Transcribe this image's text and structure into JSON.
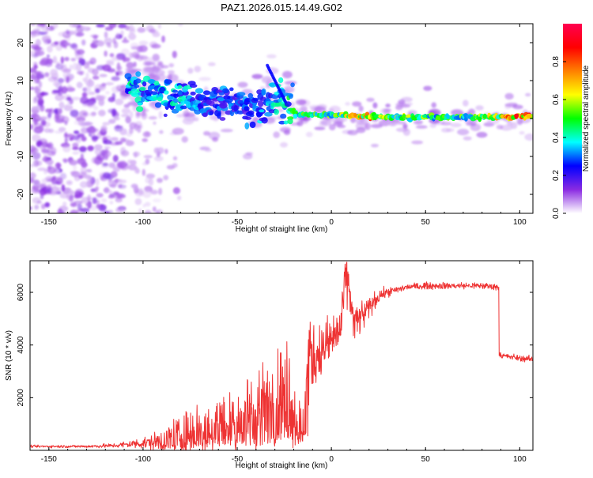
{
  "title": "PAZ1.2026.015.14.49.G02",
  "top_panel": {
    "xlabel": "Height of straight line (km)",
    "ylabel": "Frequency (Hz)",
    "colorbar_label": "Normalized spectral amplitude"
  },
  "bottom_panel": {
    "xlabel": "Height of straight line (km)",
    "ylabel": "SNR (10 * v/v)"
  },
  "chart_data": [
    {
      "type": "heatmap",
      "title": "PAZ1.2026.015.14.49.G02",
      "xlabel": "Height of straight line (km)",
      "ylabel": "Frequency (Hz)",
      "xlim": [
        -160,
        107
      ],
      "ylim": [
        -25,
        25
      ],
      "xticks": [
        -150,
        -100,
        -50,
        0,
        50,
        100
      ],
      "xtick_labels": [
        "-150",
        "-100",
        "-50",
        "0",
        "50",
        "100"
      ],
      "yticks": [
        -20,
        -10,
        0,
        10,
        20
      ],
      "ytick_labels": [
        "-20",
        "-10",
        "0",
        "10",
        "20"
      ],
      "colorbar": {
        "label": "Normalized spectral amplitude",
        "range": [
          0,
          1
        ],
        "ticks": [
          0.0,
          0.2,
          0.4,
          0.6,
          0.8
        ],
        "tick_labels": [
          "0.0",
          "0.2",
          "0.4",
          "0.6",
          "0.8"
        ],
        "colormap": [
          "#ffffff",
          "#8a2be2",
          "#0000ff",
          "#00ffff",
          "#00ff00",
          "#ffff00",
          "#ff8000",
          "#ff0000",
          "#ff0050"
        ]
      },
      "ridge": [
        {
          "x": -105,
          "freq": 7.5,
          "amp": 0.4
        },
        {
          "x": -95,
          "freq": 7.0,
          "amp": 0.35
        },
        {
          "x": -85,
          "freq": 6.0,
          "amp": 0.4
        },
        {
          "x": -75,
          "freq": 5.0,
          "amp": 0.35
        },
        {
          "x": -65,
          "freq": 4.0,
          "amp": 0.3
        },
        {
          "x": -55,
          "freq": 4.5,
          "amp": 0.3
        },
        {
          "x": -45,
          "freq": 3.0,
          "amp": 0.3
        },
        {
          "x": -35,
          "freq": 3.5,
          "amp": 0.35
        },
        {
          "x": -25,
          "freq": 5.0,
          "amp": 0.4
        },
        {
          "x": -18,
          "freq": 1.0,
          "amp": 0.5
        },
        {
          "x": 0,
          "freq": 1.0,
          "amp": 0.55
        },
        {
          "x": 20,
          "freq": 0.5,
          "amp": 0.75
        },
        {
          "x": 40,
          "freq": 0.3,
          "amp": 0.55
        },
        {
          "x": 60,
          "freq": 0.3,
          "amp": 0.5
        },
        {
          "x": 80,
          "freq": 0.4,
          "amp": 0.55
        },
        {
          "x": 100,
          "freq": 0.6,
          "amp": 0.85
        }
      ]
    },
    {
      "type": "line",
      "xlabel": "Height of straight line (km)",
      "ylabel": "SNR (10 * v/v)",
      "xlim": [
        -160,
        107
      ],
      "ylim": [
        0,
        7200
      ],
      "xticks": [
        -150,
        -100,
        -50,
        0,
        50,
        100
      ],
      "xtick_labels": [
        "-150",
        "-100",
        "-50",
        "0",
        "50",
        "100"
      ],
      "yticks": [
        2000,
        4000,
        6000
      ],
      "ytick_labels": [
        "2000",
        "4000",
        "6000"
      ],
      "series": [
        {
          "name": "SNR",
          "color": "#ee3333",
          "x": [
            -160,
            -130,
            -115,
            -105,
            -95,
            -85,
            -75,
            -65,
            -55,
            -45,
            -35,
            -28,
            -22,
            -18,
            -15,
            -12,
            -10,
            -5,
            0,
            5,
            8,
            12,
            18,
            22,
            26,
            30,
            35,
            40,
            50,
            60,
            70,
            80,
            89,
            90,
            95,
            100,
            107
          ],
          "y": [
            150,
            150,
            180,
            250,
            300,
            450,
            750,
            900,
            1200,
            1500,
            1800,
            2200,
            2400,
            1200,
            800,
            4000,
            3500,
            3800,
            4200,
            4600,
            6800,
            4800,
            5200,
            5600,
            5900,
            6000,
            6100,
            6200,
            6250,
            6250,
            6250,
            6250,
            6200,
            3600,
            3550,
            3500,
            3450
          ],
          "noise": [
            30,
            40,
            60,
            120,
            200,
            500,
            700,
            800,
            900,
            1000,
            1100,
            1200,
            1300,
            800,
            600,
            800,
            900,
            700,
            700,
            700,
            700,
            500,
            400,
            250,
            150,
            120,
            100,
            90,
            90,
            90,
            90,
            90,
            90,
            80,
            80,
            80,
            80
          ]
        }
      ]
    }
  ]
}
